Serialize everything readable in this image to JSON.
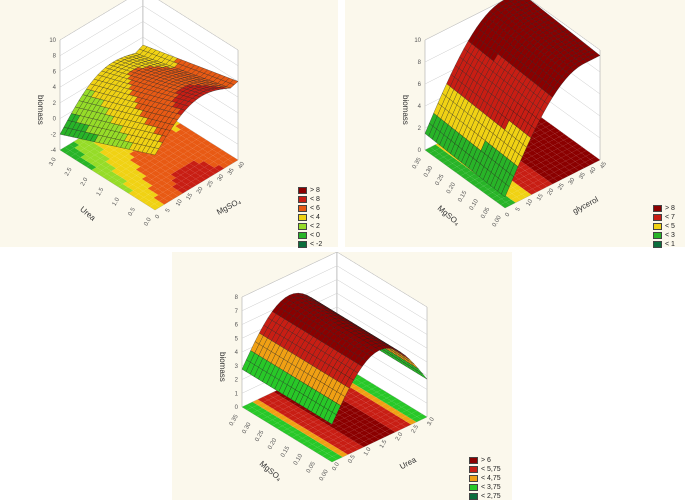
{
  "chart_data": [
    {
      "type": "surface3d",
      "xlabel": "MgSO₄",
      "ylabel": "Urea",
      "zlabel": "biomass",
      "x_ticks": [
        "0",
        "5",
        "10",
        "15",
        "20",
        "25",
        "30",
        "35",
        "40"
      ],
      "y_ticks": [
        "0.0",
        "0.5",
        "1.0",
        "1.5",
        "2.0",
        "2.5",
        "3.0"
      ],
      "z_ticks": [
        "-4",
        "-2",
        "0",
        "2",
        "4",
        "6",
        "8",
        "10"
      ],
      "xlim": [
        0,
        40
      ],
      "ylim": [
        0,
        3
      ],
      "zlim": [
        -4,
        10
      ],
      "surface": {
        "z_at_corners": {
          "x0y0": 3.0,
          "x40y0": 6.0,
          "x0y3": -2.0,
          "x40y3": 5.0
        },
        "peak": 9.0
      },
      "legend": [
        {
          "label": "> 8",
          "color": "#8b0000"
        },
        {
          "label": "< 8",
          "color": "#c81e14"
        },
        {
          "label": "< 6",
          "color": "#e85a14"
        },
        {
          "label": "< 4",
          "color": "#f0d214"
        },
        {
          "label": "< 2",
          "color": "#96dc28"
        },
        {
          "label": "< 0",
          "color": "#28b428"
        },
        {
          "label": "< -2",
          "color": "#0a6e3c"
        }
      ]
    },
    {
      "type": "surface3d",
      "xlabel": "glycerol",
      "ylabel": "MgSO₄",
      "zlabel": "biomass",
      "x_ticks": [
        "0",
        "5",
        "10",
        "15",
        "20",
        "25",
        "30",
        "35",
        "40",
        "45"
      ],
      "y_ticks": [
        "0.00",
        "0.05",
        "0.10",
        "0.15",
        "0.20",
        "0.25",
        "0.30",
        "0.35"
      ],
      "z_ticks": [
        "0",
        "2",
        "4",
        "6",
        "8",
        "10"
      ],
      "xlim": [
        0,
        45
      ],
      "ylim": [
        0,
        0.35
      ],
      "zlim": [
        0,
        10
      ],
      "surface": {
        "z_at_corners": {
          "x0y0": 1.0,
          "x45y0": 9.0,
          "x0y035": 1.5,
          "x45y035": 9.5
        },
        "peak": 9.5
      },
      "legend": [
        {
          "label": "> 8",
          "color": "#8b0000"
        },
        {
          "label": "< 7",
          "color": "#c81e14"
        },
        {
          "label": "< 5",
          "color": "#f0d214"
        },
        {
          "label": "< 3",
          "color": "#28b428"
        },
        {
          "label": "< 1",
          "color": "#0a6e3c"
        }
      ]
    },
    {
      "type": "surface3d",
      "xlabel": "Urea",
      "ylabel": "MgSO₄",
      "zlabel": "biomass",
      "x_ticks": [
        "0.0",
        "0.5",
        "1.0",
        "1.5",
        "2.0",
        "2.5",
        "3.0"
      ],
      "y_ticks": [
        "0.00",
        "0.05",
        "0.10",
        "0.15",
        "0.20",
        "0.25",
        "0.30",
        "0.35"
      ],
      "z_ticks": [
        "0",
        "1",
        "2",
        "3",
        "4",
        "5",
        "6",
        "7",
        "8"
      ],
      "xlim": [
        0,
        3
      ],
      "ylim": [
        0,
        0.35
      ],
      "zlim": [
        0,
        8
      ],
      "surface": {
        "z_at_corners": {
          "x0y0": 2.75,
          "x3y0": 4.0,
          "x0y035": 2.75,
          "x3y035": 4.0
        },
        "peak": 6.5
      },
      "legend": [
        {
          "label": "> 6",
          "color": "#8b0000"
        },
        {
          "label": "< 5,75",
          "color": "#c81e14"
        },
        {
          "label": "< 4,75",
          "color": "#f0a014"
        },
        {
          "label": "< 3,75",
          "color": "#28c828"
        },
        {
          "label": "< 2,75",
          "color": "#0a6e3c"
        }
      ]
    }
  ]
}
